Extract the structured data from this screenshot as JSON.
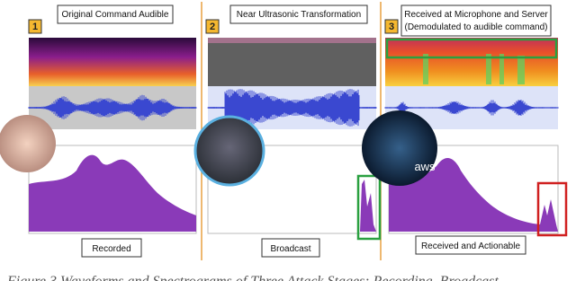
{
  "figure": {
    "panels": [
      {
        "number": "1",
        "title": "Original Command Audible",
        "label": "Recorded"
      },
      {
        "number": "2",
        "title": "Near Ultrasonic Transformation",
        "label": "Broadcast"
      },
      {
        "number": "3",
        "title": "Received at Microphone and Server",
        "subtitle": "(Demodulated to audible command)",
        "label": "Received and Actionable"
      }
    ],
    "overlay": "aws",
    "caption": "Figure 3 Waveforms and Spectrograms of Three Attack Stages: Recording, Broadcast"
  }
}
